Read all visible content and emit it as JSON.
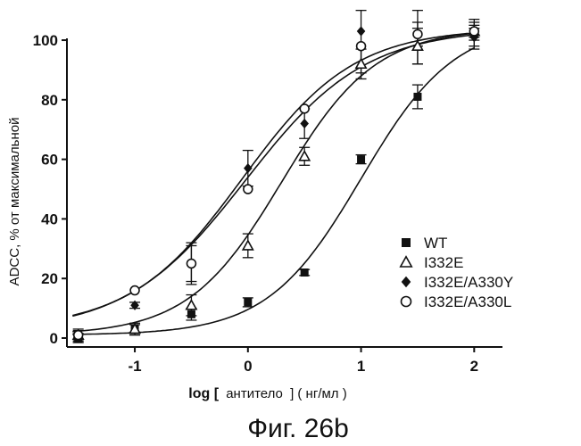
{
  "chart_data": {
    "type": "scatter",
    "xlabel": {
      "bold": "log [",
      "mid": "антитело",
      "close": "] ( нг/мл )"
    },
    "ylabel": "ADCC, % от максимальной",
    "xlim": [
      -1.6,
      2.25
    ],
    "ylim": [
      -3,
      106
    ],
    "xticks": [
      -1,
      0,
      1,
      2
    ],
    "yticks": [
      0,
      20,
      40,
      60,
      80,
      100
    ],
    "legend_position": "right",
    "series": [
      {
        "name": "WT",
        "marker": "square",
        "x": [
          -1.5,
          -1.0,
          -0.5,
          0.0,
          0.5,
          1.0,
          1.5,
          2.0
        ],
        "y": [
          0,
          3,
          8,
          12,
          22,
          60,
          81,
          102
        ],
        "err": [
          1.5,
          1.5,
          2,
          1.5,
          1,
          1.5,
          4,
          5
        ],
        "fit": {
          "bottom": 1,
          "top": 106,
          "ec50": 1.0,
          "hill": 1.05
        }
      },
      {
        "name": "I332E",
        "marker": "triangle",
        "x": [
          -1.5,
          -1.0,
          -0.5,
          0.0,
          0.5,
          1.0,
          1.5,
          2.0
        ],
        "y": [
          1,
          3,
          11,
          31,
          61,
          92,
          98,
          103
        ],
        "err": [
          2,
          2,
          3.5,
          4,
          3,
          5,
          6,
          3
        ],
        "fit": {
          "bottom": 1,
          "top": 104,
          "ec50": 0.3,
          "hill": 1.05
        }
      },
      {
        "name": "I332E/A330Y",
        "marker": "diamond",
        "x": [
          -1.5,
          -1.0,
          -0.5,
          0.0,
          0.5,
          1.0,
          1.5,
          2.0
        ],
        "y": [
          0,
          11,
          25,
          57,
          72,
          103,
          102,
          101
        ],
        "err": [
          1.5,
          1,
          7,
          6,
          5,
          14,
          10,
          3
        ],
        "fit": {
          "bottom": 2,
          "top": 104,
          "ec50": -0.02,
          "hill": 0.82
        }
      },
      {
        "name": "I332E/A330L",
        "marker": "circle",
        "x": [
          -1.5,
          -1.0,
          -0.5,
          0.0,
          0.5,
          1.0,
          1.5,
          2.0
        ],
        "y": [
          1,
          16,
          25,
          50,
          77,
          98,
          102,
          103
        ],
        "err": [
          1.5,
          0,
          6,
          0,
          0,
          0,
          4,
          2
        ],
        "fit": {
          "bottom": 3,
          "top": 104,
          "ec50": -0.05,
          "hill": 0.88
        }
      }
    ]
  },
  "caption": "Фиг. 26b"
}
